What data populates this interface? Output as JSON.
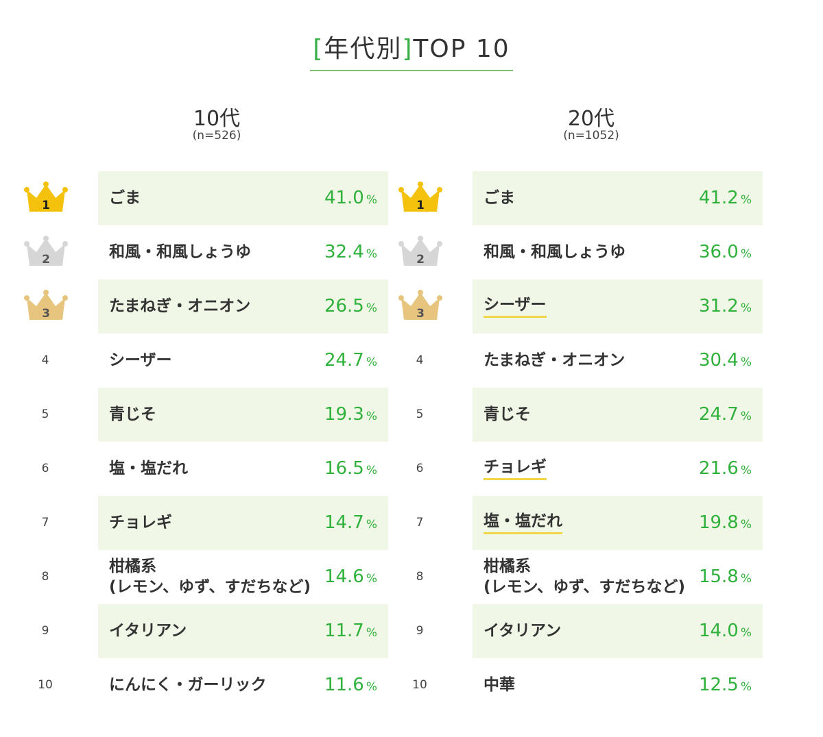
{
  "title": {
    "open": "[",
    "text": "年代別",
    "close": "]",
    "suffix": "TOP 10"
  },
  "chart_data": [
    {
      "type": "table",
      "title": "10代",
      "subtitle": "(n=526)",
      "columns": [
        "rank",
        "item",
        "percent"
      ],
      "rows": [
        {
          "rank": "1",
          "label": "ごま",
          "value": "41.0",
          "unit": "%"
        },
        {
          "rank": "2",
          "label": "和風・和風しょうゆ",
          "value": "32.4",
          "unit": "%"
        },
        {
          "rank": "3",
          "label": "たまねぎ・オニオン",
          "value": "26.5",
          "unit": "%"
        },
        {
          "rank": "4",
          "label": "シーザー",
          "value": "24.7",
          "unit": "%"
        },
        {
          "rank": "5",
          "label": "青じそ",
          "value": "19.3",
          "unit": "%"
        },
        {
          "rank": "6",
          "label": "塩・塩だれ",
          "value": "16.5",
          "unit": "%"
        },
        {
          "rank": "7",
          "label": "チョレギ",
          "value": "14.7",
          "unit": "%"
        },
        {
          "rank": "8",
          "label": "柑橘系",
          "label2": "(レモン、ゆず、すだちなど)",
          "value": "14.6",
          "unit": "%"
        },
        {
          "rank": "9",
          "label": "イタリアン",
          "value": "11.7",
          "unit": "%"
        },
        {
          "rank": "10",
          "label": "にんにく・ガーリック",
          "value": "11.6",
          "unit": "%"
        }
      ]
    },
    {
      "type": "table",
      "title": "20代",
      "subtitle": "(n=1052)",
      "columns": [
        "rank",
        "item",
        "percent"
      ],
      "rows": [
        {
          "rank": "1",
          "label": "ごま",
          "value": "41.2",
          "unit": "%"
        },
        {
          "rank": "2",
          "label": "和風・和風しょうゆ",
          "value": "36.0",
          "unit": "%"
        },
        {
          "rank": "3",
          "label": "シーザー",
          "value": "31.2",
          "unit": "%",
          "highlight": true
        },
        {
          "rank": "4",
          "label": "たまねぎ・オニオン",
          "value": "30.4",
          "unit": "%"
        },
        {
          "rank": "5",
          "label": "青じそ",
          "value": "24.7",
          "unit": "%"
        },
        {
          "rank": "6",
          "label": "チョレギ",
          "value": "21.6",
          "unit": "%",
          "highlight": true
        },
        {
          "rank": "7",
          "label": "塩・塩だれ",
          "value": "19.8",
          "unit": "%",
          "highlight": true
        },
        {
          "rank": "8",
          "label": "柑橘系",
          "label2": "(レモン、ゆず、すだちなど)",
          "value": "15.8",
          "unit": "%"
        },
        {
          "rank": "9",
          "label": "イタリアン",
          "value": "14.0",
          "unit": "%"
        },
        {
          "rank": "10",
          "label": "中華",
          "value": "12.5",
          "unit": "%"
        }
      ]
    }
  ],
  "colors": {
    "accent_green": "#2fb13b",
    "row_shade": "#f1f7e6",
    "highlight_underline": "#f2d64a",
    "crown_gold": "#f4c20d",
    "crown_silver": "#d6d6d6",
    "crown_bronze": "#e8c57e"
  },
  "icons": {
    "rank1": "gold-crown-icon",
    "rank2": "silver-crown-icon",
    "rank3": "bronze-crown-icon"
  }
}
